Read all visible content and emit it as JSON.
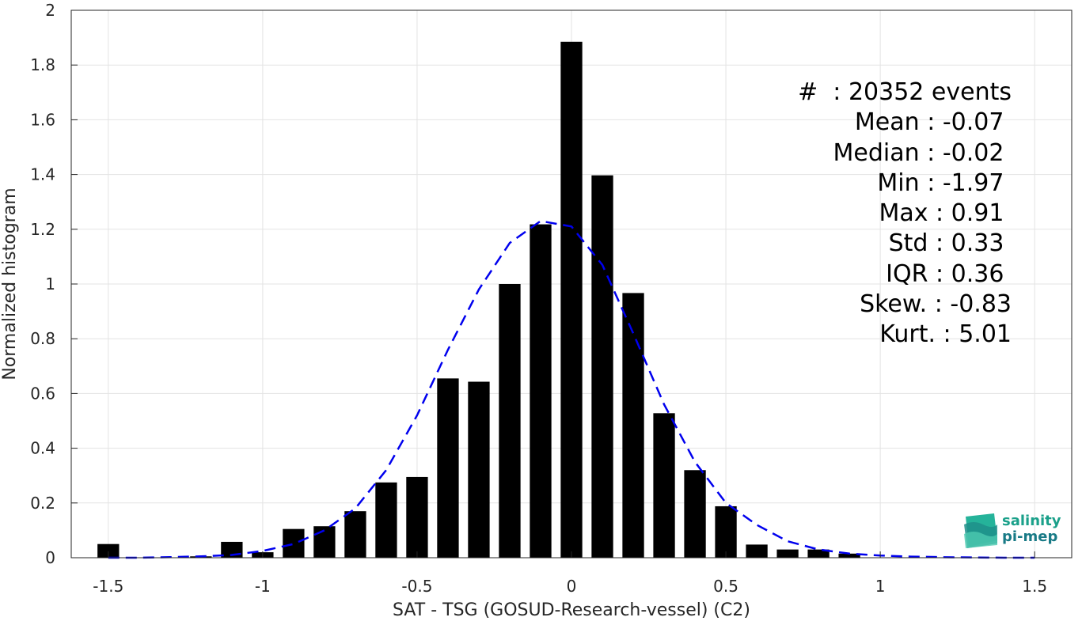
{
  "chart_data": {
    "type": "bar",
    "xlabel": "SAT - TSG (GOSUD-Research-vessel) (C2)",
    "ylabel": "Normalized histogram",
    "xlim": [
      -1.62,
      1.62
    ],
    "ylim": [
      0,
      2
    ],
    "xticks": [
      -1.5,
      -1,
      -0.5,
      0,
      0.5,
      1,
      1.5
    ],
    "xtick_labels": [
      "-1.5",
      "-1",
      "-0.5",
      "0",
      "0.5",
      "1",
      "1.5"
    ],
    "yticks": [
      0,
      0.2,
      0.4,
      0.6,
      0.8,
      1,
      1.2,
      1.4,
      1.6,
      1.8,
      2
    ],
    "ytick_labels": [
      "0",
      "0.2",
      "0.4",
      "0.6",
      "0.8",
      "1",
      "1.2",
      "1.4",
      "1.6",
      "1.8",
      "2"
    ],
    "grid": true,
    "bar_width": 0.07,
    "bars": {
      "x": [
        -1.5,
        -1.4,
        -1.3,
        -1.2,
        -1.1,
        -1.0,
        -0.9,
        -0.8,
        -0.7,
        -0.6,
        -0.5,
        -0.4,
        -0.3,
        -0.2,
        -0.1,
        0.0,
        0.1,
        0.2,
        0.3,
        0.4,
        0.5,
        0.6,
        0.7,
        0.8,
        0.9
      ],
      "values": [
        0.05,
        0,
        0,
        0.005,
        0.058,
        0.02,
        0.105,
        0.115,
        0.17,
        0.275,
        0.295,
        0.655,
        0.643,
        1.0,
        1.218,
        1.885,
        1.397,
        0.967,
        0.528,
        0.32,
        0.188,
        0.048,
        0.03,
        0.03,
        0.015
      ]
    },
    "fit_curve": {
      "style": "dashed",
      "color": "#0000ee",
      "x": [
        -1.5,
        -1.4,
        -1.3,
        -1.2,
        -1.1,
        -1.0,
        -0.9,
        -0.8,
        -0.7,
        -0.6,
        -0.5,
        -0.4,
        -0.3,
        -0.2,
        -0.1,
        0.0,
        0.1,
        0.2,
        0.3,
        0.4,
        0.5,
        0.6,
        0.7,
        0.8,
        0.9,
        1.0,
        1.1,
        1.2,
        1.3,
        1.4,
        1.5
      ],
      "y": [
        0,
        0,
        0.002,
        0.005,
        0.01,
        0.025,
        0.05,
        0.1,
        0.18,
        0.32,
        0.52,
        0.76,
        0.98,
        1.15,
        1.23,
        1.21,
        1.07,
        0.82,
        0.56,
        0.35,
        0.2,
        0.12,
        0.06,
        0.03,
        0.015,
        0.008,
        0.004,
        0.002,
        0.001,
        0,
        0
      ]
    }
  },
  "stats": [
    "#  : 20352 events",
    "Mean : -0.07 ",
    "Median : -0.02 ",
    "Min : -1.97 ",
    "Max : 0.91 ",
    "Std : 0.33 ",
    "IQR : 0.36 ",
    "Skew. : -0.83",
    "Kurt. : 5.01"
  ],
  "logo": {
    "line1": "salinity",
    "line2": "pi-mep",
    "color_primary": "#1aa08a",
    "color_secondary": "#187a86"
  }
}
